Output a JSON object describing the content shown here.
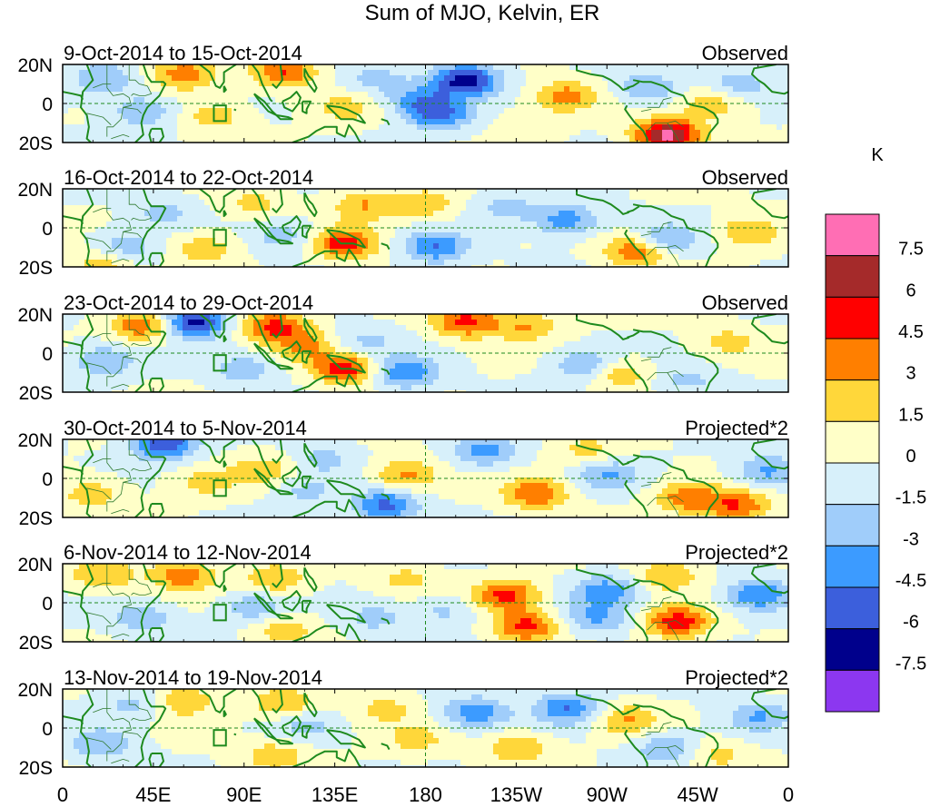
{
  "chart_data": {
    "type": "heatmap",
    "title": "Sum of MJO, Kelvin, ER",
    "colorbar": {
      "unit": "K",
      "tick_labels": [
        "7.5",
        "6",
        "4.5",
        "3",
        "1.5",
        "0",
        "-1.5",
        "-3",
        "-4.5",
        "-6",
        "-7.5"
      ],
      "levels": [
        7.5,
        6,
        4.5,
        3,
        1.5,
        0,
        -1.5,
        -3,
        -4.5,
        -6,
        -7.5
      ],
      "colors": [
        "#ff6eb4",
        "#a52a2a",
        "#ff0000",
        "#ff7f00",
        "#ffd73a",
        "#ffffc8",
        "#d7f0fa",
        "#a0cdfa",
        "#3c9bff",
        "#3c5fdc",
        "#00008c",
        "#8c37f0"
      ]
    },
    "x_tick_labels": [
      "0",
      "45E",
      "90E",
      "135E",
      "180",
      "135W",
      "90W",
      "45W",
      "0"
    ],
    "x_lon": [
      0,
      45,
      90,
      135,
      180,
      225,
      270,
      315,
      360
    ],
    "y_tick_labels": [
      "20N",
      "0",
      "20S"
    ],
    "y_lat": [
      20,
      0,
      -20
    ],
    "panels": [
      {
        "date_range": "9-Oct-2014 to 15-Oct-2014",
        "label": "Observed",
        "anomalies": [
          {
            "lon": 200,
            "lat": 12,
            "value": -7.0
          },
          {
            "lon": 177,
            "lat": 2,
            "value": -3.5
          },
          {
            "lon": 187,
            "lat": -6,
            "value": -4.5
          },
          {
            "lon": 250,
            "lat": 4,
            "value": 3.5
          },
          {
            "lon": 300,
            "lat": -16,
            "value": 8.0
          },
          {
            "lon": 290,
            "lat": 8,
            "value": -3.0
          },
          {
            "lon": 110,
            "lat": 16,
            "value": 4.5
          },
          {
            "lon": 75,
            "lat": -6,
            "value": 2.5
          },
          {
            "lon": 40,
            "lat": -4,
            "value": -3.0
          },
          {
            "lon": 20,
            "lat": 12,
            "value": -3.0
          },
          {
            "lon": 140,
            "lat": -2,
            "value": 2.0
          },
          {
            "lon": 335,
            "lat": 10,
            "value": -2.5
          },
          {
            "lon": 322,
            "lat": 0,
            "value": 3.0
          },
          {
            "lon": 60,
            "lat": 15,
            "value": 4.0
          },
          {
            "lon": 155,
            "lat": 12,
            "value": -2.0
          },
          {
            "lon": 230,
            "lat": -12,
            "value": 1.5
          }
        ]
      },
      {
        "date_range": "16-Oct-2014 to 22-Oct-2014",
        "label": "Observed",
        "anomalies": [
          {
            "lon": 140,
            "lat": -8,
            "value": 5.5
          },
          {
            "lon": 150,
            "lat": 12,
            "value": 3.0
          },
          {
            "lon": 185,
            "lat": -10,
            "value": -4.5
          },
          {
            "lon": 180,
            "lat": 12,
            "value": 2.5
          },
          {
            "lon": 250,
            "lat": 4,
            "value": -4.0
          },
          {
            "lon": 285,
            "lat": -12,
            "value": 4.5
          },
          {
            "lon": 300,
            "lat": -6,
            "value": -3.5
          },
          {
            "lon": 70,
            "lat": -10,
            "value": 2.5
          },
          {
            "lon": 30,
            "lat": -10,
            "value": -3.0
          },
          {
            "lon": 50,
            "lat": 8,
            "value": -2.0
          },
          {
            "lon": 110,
            "lat": -4,
            "value": -2.5
          },
          {
            "lon": 95,
            "lat": 12,
            "value": 2.0
          },
          {
            "lon": 220,
            "lat": 10,
            "value": -2.0
          },
          {
            "lon": 340,
            "lat": -2,
            "value": 3.0
          },
          {
            "lon": 20,
            "lat": -18,
            "value": 3.0
          }
        ]
      },
      {
        "date_range": "23-Oct-2014 to 29-Oct-2014",
        "label": "Observed",
        "anomalies": [
          {
            "lon": 65,
            "lat": 16,
            "value": -7.0
          },
          {
            "lon": 40,
            "lat": 14,
            "value": 4.5
          },
          {
            "lon": 105,
            "lat": 14,
            "value": 5.0
          },
          {
            "lon": 140,
            "lat": -8,
            "value": 5.5
          },
          {
            "lon": 170,
            "lat": -10,
            "value": -4.5
          },
          {
            "lon": 200,
            "lat": 16,
            "value": 5.0
          },
          {
            "lon": 230,
            "lat": 14,
            "value": 3.0
          },
          {
            "lon": 260,
            "lat": -6,
            "value": -3.5
          },
          {
            "lon": 275,
            "lat": -10,
            "value": 3.0
          },
          {
            "lon": 150,
            "lat": 6,
            "value": -2.0
          },
          {
            "lon": 90,
            "lat": -8,
            "value": -2.5
          },
          {
            "lon": 20,
            "lat": -4,
            "value": -3.0
          },
          {
            "lon": 330,
            "lat": 6,
            "value": 2.0
          },
          {
            "lon": 310,
            "lat": -14,
            "value": -2.0
          },
          {
            "lon": 120,
            "lat": 4,
            "value": 3.0
          }
        ]
      },
      {
        "date_range": "30-Oct-2014 to 5-Nov-2014",
        "label": "Projected*2",
        "anomalies": [
          {
            "lon": 50,
            "lat": 18,
            "value": -6.0
          },
          {
            "lon": 160,
            "lat": -14,
            "value": -5.0
          },
          {
            "lon": 170,
            "lat": 2,
            "value": 3.5
          },
          {
            "lon": 235,
            "lat": -8,
            "value": 4.5
          },
          {
            "lon": 210,
            "lat": 14,
            "value": -3.5
          },
          {
            "lon": 310,
            "lat": -10,
            "value": 4.0
          },
          {
            "lon": 335,
            "lat": -14,
            "value": 4.5
          },
          {
            "lon": 350,
            "lat": 4,
            "value": -3.5
          },
          {
            "lon": 270,
            "lat": 2,
            "value": -3.0
          },
          {
            "lon": 100,
            "lat": 4,
            "value": 2.5
          },
          {
            "lon": 15,
            "lat": -8,
            "value": 2.5
          },
          {
            "lon": 70,
            "lat": -2,
            "value": 2.0
          },
          {
            "lon": 130,
            "lat": 10,
            "value": -2.0
          },
          {
            "lon": 260,
            "lat": 14,
            "value": 2.0
          },
          {
            "lon": 120,
            "lat": -6,
            "value": -2.0
          }
        ]
      },
      {
        "date_range": "6-Nov-2014 to 12-Nov-2014",
        "label": "Projected*2",
        "anomalies": [
          {
            "lon": 220,
            "lat": 4,
            "value": 5.0
          },
          {
            "lon": 230,
            "lat": -12,
            "value": 5.0
          },
          {
            "lon": 305,
            "lat": -10,
            "value": 5.5
          },
          {
            "lon": 345,
            "lat": 4,
            "value": -4.5
          },
          {
            "lon": 270,
            "lat": 6,
            "value": -4.0
          },
          {
            "lon": 265,
            "lat": -8,
            "value": -3.0
          },
          {
            "lon": 300,
            "lat": 14,
            "value": 3.0
          },
          {
            "lon": 60,
            "lat": 14,
            "value": 4.0
          },
          {
            "lon": 105,
            "lat": 12,
            "value": 3.0
          },
          {
            "lon": 95,
            "lat": -2,
            "value": -3.0
          },
          {
            "lon": 40,
            "lat": -8,
            "value": -2.5
          },
          {
            "lon": 155,
            "lat": -8,
            "value": -2.0
          },
          {
            "lon": 110,
            "lat": -14,
            "value": 2.5
          },
          {
            "lon": 170,
            "lat": 12,
            "value": 2.0
          },
          {
            "lon": 190,
            "lat": -4,
            "value": -2.0
          },
          {
            "lon": 20,
            "lat": 14,
            "value": 3.0
          }
        ]
      },
      {
        "date_range": "13-Nov-2014 to 19-Nov-2014",
        "label": "Projected*2",
        "anomalies": [
          {
            "lon": 205,
            "lat": 8,
            "value": -4.0
          },
          {
            "lon": 250,
            "lat": 10,
            "value": -4.5
          },
          {
            "lon": 280,
            "lat": 4,
            "value": 3.0
          },
          {
            "lon": 225,
            "lat": -10,
            "value": 3.0
          },
          {
            "lon": 300,
            "lat": -10,
            "value": -3.0
          },
          {
            "lon": 345,
            "lat": 6,
            "value": -3.0
          },
          {
            "lon": 20,
            "lat": -8,
            "value": -3.0
          },
          {
            "lon": 60,
            "lat": 14,
            "value": 3.0
          },
          {
            "lon": 110,
            "lat": 12,
            "value": 3.0
          },
          {
            "lon": 105,
            "lat": -14,
            "value": 2.5
          },
          {
            "lon": 120,
            "lat": 2,
            "value": -2.0
          },
          {
            "lon": 160,
            "lat": 10,
            "value": 2.0
          },
          {
            "lon": 35,
            "lat": 12,
            "value": -2.0
          },
          {
            "lon": 325,
            "lat": -14,
            "value": 2.0
          },
          {
            "lon": 175,
            "lat": -6,
            "value": 2.0
          }
        ]
      }
    ]
  }
}
